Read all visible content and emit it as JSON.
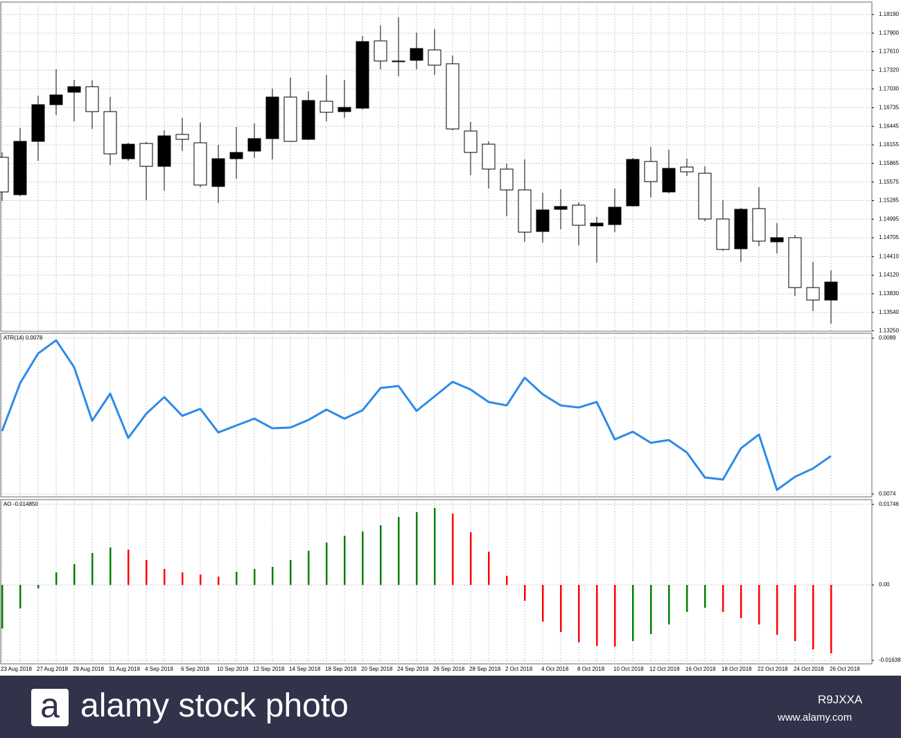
{
  "chart_data": [
    {
      "type": "candlestick",
      "categories": [
        "23 Aug 2018",
        null,
        "27 Aug 2018",
        null,
        "29 Aug 2018",
        null,
        "31 Aug 2018",
        null,
        "4 Sep 2018",
        null,
        "6 Sep 2018",
        null,
        "10 Sep 2018",
        null,
        "12 Sep 2018",
        null,
        "14 Sep 2018",
        null,
        "18 Sep 2018",
        null,
        "20 Sep 2018",
        null,
        "24 Sep 2018",
        null,
        "26 Sep 2018",
        null,
        "28 Sep 2018",
        null,
        "2 Oct 2018",
        null,
        "4 Oct 2018",
        null,
        "8 Oct 2018",
        null,
        "10 Oct 2018",
        null,
        "12 Oct 2018",
        null,
        "16 Oct 2018",
        null,
        "18 Oct 2018",
        null,
        "22 Oct 2018",
        null,
        "24 Oct 2018",
        null,
        "26 Oct 2018"
      ],
      "open": [
        1.15961,
        1.15377,
        1.1621,
        1.16783,
        1.16978,
        1.17064,
        1.16675,
        1.15939,
        1.16177,
        1.1582,
        1.16318,
        1.16188,
        1.15506,
        1.15939,
        1.16058,
        1.16253,
        1.16902,
        1.16242,
        1.16837,
        1.16675,
        1.16729,
        1.17779,
        1.17454,
        1.17476,
        1.17638,
        1.17422,
        1.16372,
        1.16166,
        1.15777,
        1.15452,
        1.14803,
        1.15149,
        1.15214,
        1.1489,
        1.14911,
        1.15203,
        1.15896,
        1.1542,
        1.15809,
        1.15712,
        1.14998,
        1.14533,
        1.1516,
        1.14641,
        1.14706,
        1.13927,
        1.13732
      ],
      "high": [
        1.16037,
        1.16415,
        1.16924,
        1.17335,
        1.17173,
        1.17162,
        1.16902,
        1.16188,
        1.16199,
        1.16383,
        1.16578,
        1.16502,
        1.16156,
        1.16437,
        1.16491,
        1.17032,
        1.17205,
        1.16989,
        1.17248,
        1.17173,
        1.17854,
        1.18017,
        1.18146,
        1.17908,
        1.17963,
        1.17551,
        1.16513,
        1.1621,
        1.15863,
        1.15928,
        1.15409,
        1.15463,
        1.15258,
        1.1503,
        1.15474,
        1.1595,
        1.16123,
        1.1608,
        1.15939,
        1.1582,
        1.1529,
        1.15171,
        1.15496,
        1.14933,
        1.14749,
        1.14327,
        1.14197
      ],
      "low": [
        1.15279,
        1.15355,
        1.15907,
        1.16621,
        1.16523,
        1.16404,
        1.15842,
        1.15907,
        1.1529,
        1.15441,
        1.16058,
        1.15496,
        1.15247,
        1.15625,
        1.1595,
        1.15928,
        1.16199,
        1.16231,
        1.16523,
        1.16578,
        1.16707,
        1.17335,
        1.17227,
        1.17335,
        1.17248,
        1.16383,
        1.1568,
        1.15474,
        1.15041,
        1.14641,
        1.1463,
        1.14836,
        1.14587,
        1.14316,
        1.14792,
        1.15193,
        1.15333,
        1.15398,
        1.15669,
        1.14965,
        1.145,
        1.14327,
        1.14576,
        1.14457,
        1.13797,
        1.13559,
        1.13364
      ],
      "close": [
        1.1542,
        1.1621,
        1.16783,
        1.16935,
        1.17064,
        1.16675,
        1.16015,
        1.16166,
        1.1582,
        1.16296,
        1.16242,
        1.15528,
        1.15939,
        1.16037,
        1.16253,
        1.16902,
        1.1621,
        1.16848,
        1.16664,
        1.1674,
        1.17768,
        1.17465,
        1.17465,
        1.1766,
        1.174,
        1.16404,
        1.16037,
        1.15777,
        1.15452,
        1.14792,
        1.15139,
        1.15193,
        1.149,
        1.14933,
        1.15182,
        1.15928,
        1.15582,
        1.15788,
        1.15734,
        1.14998,
        1.14522,
        1.15149,
        1.14652,
        1.14706,
        1.13927,
        1.13732,
        1.14013
      ],
      "up_color": "#000000",
      "down_color": "#ffffff",
      "ylim": [
        1.13245,
        1.18385
      ],
      "yticks": [
        {
          "value": 1.1819,
          "label": "1.18190"
        },
        {
          "value": 1.179,
          "label": "1.17900"
        },
        {
          "value": 1.1761,
          "label": "1.17610"
        },
        {
          "value": 1.1732,
          "label": "1.17320"
        },
        {
          "value": 1.1703,
          "label": "1.17030"
        },
        1.16735,
        1.16445,
        1.16155,
        1.15865,
        1.15575,
        1.15285,
        1.14995,
        1.14705,
        {
          "value": 1.1441,
          "label": "1.14410"
        },
        {
          "value": 1.1412,
          "label": "1.14120"
        },
        {
          "value": 1.1383,
          "label": "1.13830"
        },
        {
          "value": 1.1354,
          "label": "1.13540"
        },
        {
          "value": 1.1325,
          "label": "1.13250"
        }
      ],
      "grid": true
    },
    {
      "type": "line",
      "title": "ATR(14) 0.0078",
      "color": "#2c8ae8",
      "values": [
        0.008006,
        0.008467,
        0.008753,
        0.00888,
        0.00862,
        0.008106,
        0.008366,
        0.00794,
        0.008173,
        0.008333,
        0.008153,
        0.00822,
        0.007993,
        0.00806,
        0.008126,
        0.008033,
        0.00804,
        0.008113,
        0.008213,
        0.008126,
        0.008206,
        0.00842,
        0.00844,
        0.0082,
        0.00834,
        0.00848,
        0.008406,
        0.008286,
        0.008253,
        0.00852,
        0.00836,
        0.008253,
        0.008233,
        0.008286,
        0.007926,
        0.008,
        0.007893,
        0.00792,
        0.0078,
        0.00756,
        0.00754,
        0.00784,
        0.007973,
        0.00744,
        0.007566,
        0.007646,
        0.007766
      ],
      "ylim": [
        0.007373,
        0.008947
      ],
      "yticks": [
        0.0089,
        0.0074
      ],
      "grid": true
    },
    {
      "type": "bar",
      "title": "AO -0.014850",
      "values": [
        -0.009475,
        -0.005114,
        -0.000752,
        0.002707,
        0.004512,
        0.006918,
        0.008122,
        0.00767,
        0.005414,
        0.003459,
        0.002707,
        0.002256,
        0.001805,
        0.002858,
        0.003459,
        0.00391,
        0.005414,
        0.00737,
        0.009174,
        0.010678,
        0.01158,
        0.012934,
        0.014739,
        0.015792,
        0.016694,
        0.015491,
        0.01143,
        0.007219,
        0.001955,
        -0.003459,
        -0.007971,
        -0.010227,
        -0.012483,
        -0.013235,
        -0.013386,
        -0.012182,
        -0.010678,
        -0.008573,
        -0.005866,
        -0.004963,
        -0.005866,
        -0.007219,
        -0.008573,
        -0.010829,
        -0.012182,
        -0.013987,
        -0.01485
      ],
      "colors": [
        "#008000",
        "#008000",
        "#008000",
        "#008000",
        "#008000",
        "#008000",
        "#008000",
        "#ff0000",
        "#ff0000",
        "#ff0000",
        "#ff0000",
        "#ff0000",
        "#ff0000",
        "#008000",
        "#008000",
        "#008000",
        "#008000",
        "#008000",
        "#008000",
        "#008000",
        "#008000",
        "#008000",
        "#008000",
        "#008000",
        "#008000",
        "#ff0000",
        "#ff0000",
        "#ff0000",
        "#ff0000",
        "#ff0000",
        "#ff0000",
        "#ff0000",
        "#ff0000",
        "#ff0000",
        "#ff0000",
        "#008000",
        "#008000",
        "#008000",
        "#008000",
        "#008000",
        "#ff0000",
        "#ff0000",
        "#ff0000",
        "#ff0000",
        "#ff0000",
        "#ff0000",
        "#ff0000"
      ],
      "ylim": [
        -0.01714,
        0.018513
      ],
      "yticks": [
        0.01746,
        {
          "value": 0,
          "label": "0.00"
        },
        -0.016388
      ],
      "grid": true
    }
  ],
  "footer": {
    "brand": "alamy stock photo",
    "image_id": "R9JXXA",
    "url": "www.alamy.com"
  }
}
